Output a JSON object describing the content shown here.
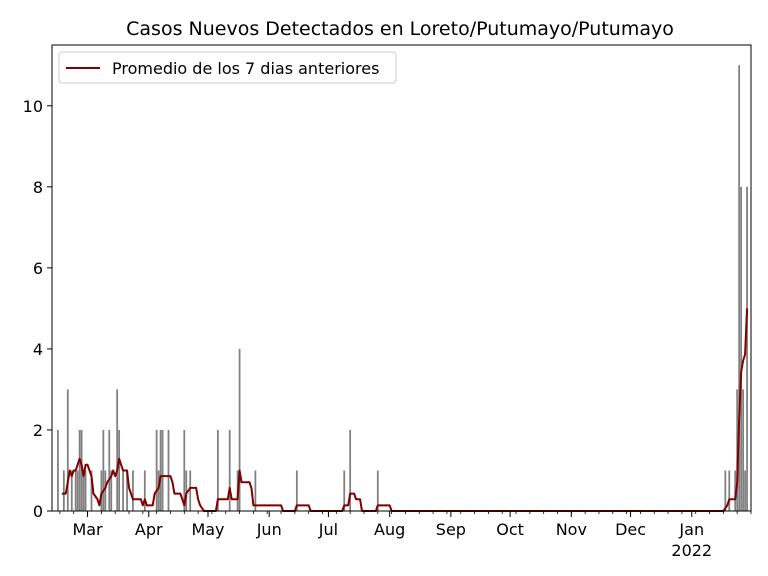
{
  "chart_data": {
    "type": "bar",
    "title": "Casos Nuevos Detectados en Loreto/Putumayo/Putumayo",
    "xlabel": "",
    "ylabel": "",
    "x_range": [
      "2021-02-11",
      "2022-01-31"
    ],
    "ylim": [
      0,
      11.5
    ],
    "y_ticks": [
      0,
      2,
      4,
      6,
      8,
      10
    ],
    "x_ticks": [
      {
        "date": "2021-03-01",
        "label": "Mar",
        "sublabel": ""
      },
      {
        "date": "2021-04-01",
        "label": "Apr",
        "sublabel": ""
      },
      {
        "date": "2021-05-01",
        "label": "May",
        "sublabel": ""
      },
      {
        "date": "2021-06-01",
        "label": "Jun",
        "sublabel": ""
      },
      {
        "date": "2021-07-01",
        "label": "Jul",
        "sublabel": ""
      },
      {
        "date": "2021-08-01",
        "label": "Aug",
        "sublabel": ""
      },
      {
        "date": "2021-09-01",
        "label": "Sep",
        "sublabel": ""
      },
      {
        "date": "2021-10-01",
        "label": "Oct",
        "sublabel": ""
      },
      {
        "date": "2021-11-01",
        "label": "Nov",
        "sublabel": ""
      },
      {
        "date": "2021-12-01",
        "label": "Dec",
        "sublabel": ""
      },
      {
        "date": "2022-01-01",
        "label": "Jan",
        "sublabel": "2022"
      }
    ],
    "legend": {
      "placement": "top-left",
      "entries": [
        "Promedio de los 7 dias anteriores"
      ]
    },
    "grid": false,
    "colors": {
      "bars": "#808080",
      "line": "#800000"
    },
    "series": [
      {
        "name": "Casos nuevos",
        "kind": "bar",
        "points": [
          [
            "2021-02-14",
            2
          ],
          [
            "2021-02-17",
            1
          ],
          [
            "2021-02-19",
            3
          ],
          [
            "2021-02-21",
            1
          ],
          [
            "2021-02-23",
            1
          ],
          [
            "2021-02-24",
            1
          ],
          [
            "2021-02-25",
            2
          ],
          [
            "2021-02-26",
            2
          ],
          [
            "2021-02-27",
            1
          ],
          [
            "2021-02-28",
            1
          ],
          [
            "2021-03-03",
            1
          ],
          [
            "2021-03-08",
            1
          ],
          [
            "2021-03-09",
            2
          ],
          [
            "2021-03-10",
            1
          ],
          [
            "2021-03-12",
            2
          ],
          [
            "2021-03-13",
            1
          ],
          [
            "2021-03-16",
            3
          ],
          [
            "2021-03-17",
            2
          ],
          [
            "2021-03-19",
            1
          ],
          [
            "2021-03-21",
            1
          ],
          [
            "2021-03-24",
            1
          ],
          [
            "2021-03-30",
            1
          ],
          [
            "2021-04-05",
            2
          ],
          [
            "2021-04-06",
            1
          ],
          [
            "2021-04-07",
            2
          ],
          [
            "2021-04-08",
            2
          ],
          [
            "2021-04-11",
            2
          ],
          [
            "2021-04-19",
            2
          ],
          [
            "2021-04-20",
            1
          ],
          [
            "2021-04-22",
            1
          ],
          [
            "2021-05-06",
            2
          ],
          [
            "2021-05-12",
            2
          ],
          [
            "2021-05-16",
            1
          ],
          [
            "2021-05-17",
            4
          ],
          [
            "2021-05-25",
            1
          ],
          [
            "2021-06-15",
            1
          ],
          [
            "2021-07-09",
            1
          ],
          [
            "2021-07-12",
            2
          ],
          [
            "2021-07-26",
            1
          ],
          [
            "2022-01-18",
            1
          ],
          [
            "2022-01-20",
            1
          ],
          [
            "2022-01-23",
            1
          ],
          [
            "2022-01-24",
            3
          ],
          [
            "2022-01-25",
            11
          ],
          [
            "2022-01-26",
            8
          ],
          [
            "2022-01-27",
            3
          ],
          [
            "2022-01-28",
            1
          ],
          [
            "2022-01-29",
            8
          ]
        ]
      },
      {
        "name": "Promedio de los 7 dias anteriores",
        "kind": "line",
        "points": [
          [
            "2021-02-16",
            0.43
          ],
          [
            "2021-02-18",
            0.43
          ],
          [
            "2021-02-19",
            0.71
          ],
          [
            "2021-02-20",
            1.0
          ],
          [
            "2021-02-21",
            0.86
          ],
          [
            "2021-02-22",
            1.0
          ],
          [
            "2021-02-23",
            1.0
          ],
          [
            "2021-02-25",
            1.29
          ],
          [
            "2021-02-26",
            1.14
          ],
          [
            "2021-02-27",
            0.86
          ],
          [
            "2021-02-28",
            1.14
          ],
          [
            "2021-03-01",
            1.14
          ],
          [
            "2021-03-03",
            0.86
          ],
          [
            "2021-03-04",
            0.43
          ],
          [
            "2021-03-06",
            0.29
          ],
          [
            "2021-03-07",
            0.14
          ],
          [
            "2021-03-08",
            0.43
          ],
          [
            "2021-03-10",
            0.57
          ],
          [
            "2021-03-11",
            0.71
          ],
          [
            "2021-03-13",
            0.86
          ],
          [
            "2021-03-14",
            1.0
          ],
          [
            "2021-03-15",
            0.86
          ],
          [
            "2021-03-16",
            1.0
          ],
          [
            "2021-03-17",
            1.29
          ],
          [
            "2021-03-18",
            1.14
          ],
          [
            "2021-03-19",
            1.0
          ],
          [
            "2021-03-21",
            1.0
          ],
          [
            "2021-03-22",
            0.57
          ],
          [
            "2021-03-23",
            0.43
          ],
          [
            "2021-03-24",
            0.29
          ],
          [
            "2021-03-28",
            0.29
          ],
          [
            "2021-03-29",
            0.14
          ],
          [
            "2021-03-30",
            0.29
          ],
          [
            "2021-03-31",
            0.14
          ],
          [
            "2021-04-03",
            0.14
          ],
          [
            "2021-04-04",
            0.43
          ],
          [
            "2021-04-06",
            0.57
          ],
          [
            "2021-04-07",
            0.86
          ],
          [
            "2021-04-12",
            0.86
          ],
          [
            "2021-04-13",
            0.71
          ],
          [
            "2021-04-14",
            0.43
          ],
          [
            "2021-04-17",
            0.43
          ],
          [
            "2021-04-18",
            0.29
          ],
          [
            "2021-04-19",
            0.14
          ],
          [
            "2021-04-20",
            0.43
          ],
          [
            "2021-04-22",
            0.57
          ],
          [
            "2021-04-25",
            0.57
          ],
          [
            "2021-04-26",
            0.29
          ],
          [
            "2021-04-27",
            0.14
          ],
          [
            "2021-04-29",
            0.0
          ],
          [
            "2021-05-05",
            0.0
          ],
          [
            "2021-05-06",
            0.29
          ],
          [
            "2021-05-11",
            0.29
          ],
          [
            "2021-05-12",
            0.57
          ],
          [
            "2021-05-13",
            0.29
          ],
          [
            "2021-05-16",
            0.29
          ],
          [
            "2021-05-17",
            1.0
          ],
          [
            "2021-05-18",
            0.71
          ],
          [
            "2021-05-22",
            0.71
          ],
          [
            "2021-05-23",
            0.57
          ],
          [
            "2021-05-24",
            0.14
          ],
          [
            "2021-06-07",
            0.14
          ],
          [
            "2021-06-08",
            0.0
          ],
          [
            "2021-06-14",
            0.0
          ],
          [
            "2021-06-15",
            0.14
          ],
          [
            "2021-06-21",
            0.14
          ],
          [
            "2021-06-22",
            0.0
          ],
          [
            "2021-07-08",
            0.0
          ],
          [
            "2021-07-09",
            0.14
          ],
          [
            "2021-07-11",
            0.14
          ],
          [
            "2021-07-12",
            0.43
          ],
          [
            "2021-07-14",
            0.43
          ],
          [
            "2021-07-15",
            0.29
          ],
          [
            "2021-07-17",
            0.29
          ],
          [
            "2021-07-18",
            0.0
          ],
          [
            "2021-07-25",
            0.0
          ],
          [
            "2021-07-26",
            0.14
          ],
          [
            "2021-08-01",
            0.14
          ],
          [
            "2021-08-02",
            0.0
          ],
          [
            "2022-01-17",
            0.0
          ],
          [
            "2022-01-19",
            0.14
          ],
          [
            "2022-01-20",
            0.29
          ],
          [
            "2022-01-23",
            0.29
          ],
          [
            "2022-01-24",
            0.71
          ],
          [
            "2022-01-25",
            2.29
          ],
          [
            "2022-01-26",
            3.43
          ],
          [
            "2022-01-27",
            3.71
          ],
          [
            "2022-01-28",
            3.86
          ],
          [
            "2022-01-29",
            5.0
          ]
        ]
      }
    ]
  }
}
